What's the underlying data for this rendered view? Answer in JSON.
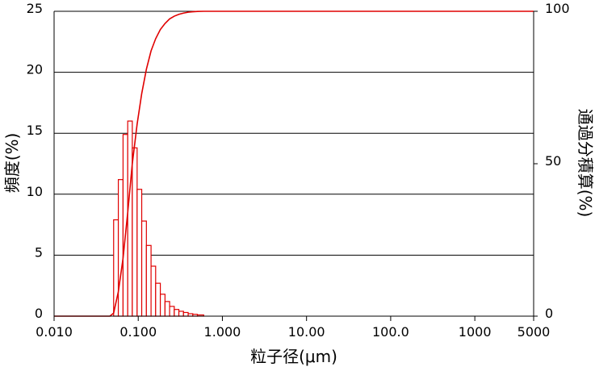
{
  "chart_data": {
    "type": "bar",
    "xlabel": "粒子径(μm)",
    "ylabel_left": "頻度(%)",
    "ylabel_right": "通過分積算(%)",
    "x_scale": "log",
    "xlim": [
      0.01,
      5000
    ],
    "x_ticks": [
      {
        "value": 0.01,
        "label": "0.010"
      },
      {
        "value": 0.1,
        "label": "0.100"
      },
      {
        "value": 1,
        "label": "1.000"
      },
      {
        "value": 10,
        "label": "10.00"
      },
      {
        "value": 100,
        "label": "100.0"
      },
      {
        "value": 1000,
        "label": "1000"
      },
      {
        "value": 5000,
        "label": "5000"
      }
    ],
    "ylim_left": [
      0,
      25
    ],
    "y_ticks_left": [
      0,
      5,
      10,
      15,
      20,
      25
    ],
    "ylim_right": [
      0,
      100
    ],
    "y_ticks_right": [
      0,
      50,
      100
    ],
    "grid": true,
    "series": [
      {
        "kind": "histogram",
        "axis": "left",
        "color": "#e00000",
        "bins": [
          {
            "x0": 0.051,
            "x1": 0.058,
            "y": 7.9
          },
          {
            "x0": 0.058,
            "x1": 0.066,
            "y": 11.2
          },
          {
            "x0": 0.066,
            "x1": 0.075,
            "y": 14.9
          },
          {
            "x0": 0.075,
            "x1": 0.085,
            "y": 16.0
          },
          {
            "x0": 0.085,
            "x1": 0.097,
            "y": 13.8
          },
          {
            "x0": 0.097,
            "x1": 0.11,
            "y": 10.4
          },
          {
            "x0": 0.11,
            "x1": 0.125,
            "y": 7.8
          },
          {
            "x0": 0.125,
            "x1": 0.142,
            "y": 5.8
          },
          {
            "x0": 0.142,
            "x1": 0.161,
            "y": 4.1
          },
          {
            "x0": 0.161,
            "x1": 0.183,
            "y": 2.7
          },
          {
            "x0": 0.183,
            "x1": 0.208,
            "y": 1.8
          },
          {
            "x0": 0.208,
            "x1": 0.236,
            "y": 1.2
          },
          {
            "x0": 0.236,
            "x1": 0.268,
            "y": 0.8
          },
          {
            "x0": 0.268,
            "x1": 0.304,
            "y": 0.55
          },
          {
            "x0": 0.304,
            "x1": 0.345,
            "y": 0.4
          },
          {
            "x0": 0.345,
            "x1": 0.392,
            "y": 0.3
          },
          {
            "x0": 0.392,
            "x1": 0.445,
            "y": 0.2
          },
          {
            "x0": 0.445,
            "x1": 0.505,
            "y": 0.15
          },
          {
            "x0": 0.505,
            "x1": 0.6,
            "y": 0.1
          }
        ]
      },
      {
        "kind": "line",
        "axis": "right",
        "color": "#e00000",
        "points": [
          [
            0.01,
            0
          ],
          [
            0.046,
            0
          ],
          [
            0.051,
            1
          ],
          [
            0.058,
            8
          ],
          [
            0.066,
            19
          ],
          [
            0.075,
            34
          ],
          [
            0.085,
            50
          ],
          [
            0.097,
            63
          ],
          [
            0.11,
            73
          ],
          [
            0.125,
            81
          ],
          [
            0.142,
            87
          ],
          [
            0.161,
            91
          ],
          [
            0.183,
            94
          ],
          [
            0.208,
            96
          ],
          [
            0.236,
            97.5
          ],
          [
            0.268,
            98.4
          ],
          [
            0.304,
            99
          ],
          [
            0.345,
            99.4
          ],
          [
            0.392,
            99.7
          ],
          [
            0.445,
            99.85
          ],
          [
            0.505,
            99.95
          ],
          [
            0.6,
            100
          ],
          [
            5000,
            100
          ]
        ]
      }
    ]
  }
}
